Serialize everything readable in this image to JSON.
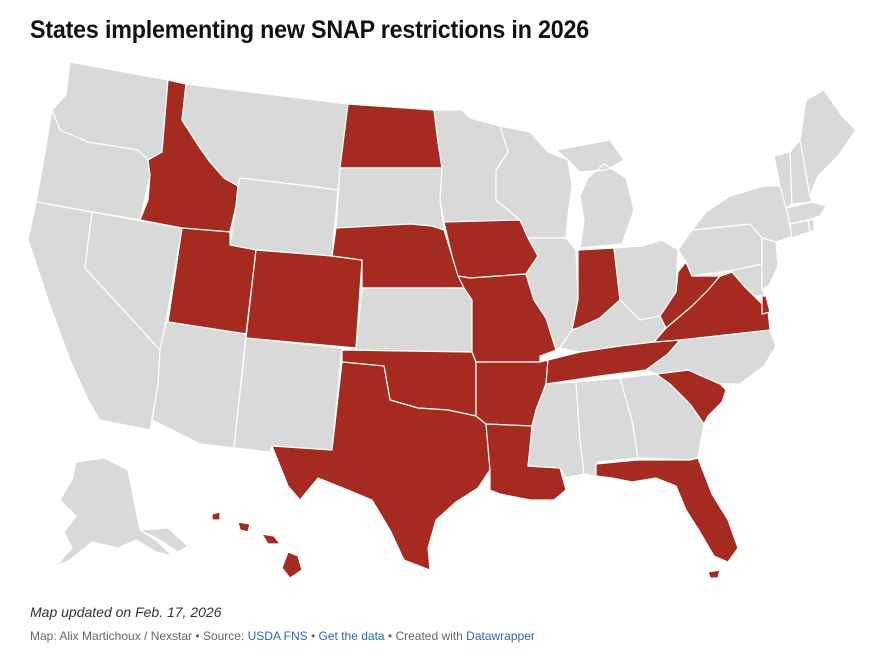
{
  "title": "States implementing new SNAP restrictions in 2026",
  "colors": {
    "restricted": "#a52a1f",
    "other": "#d9d9d9",
    "border": "#ffffff",
    "link": "#2e6ab0"
  },
  "map": {
    "restricted_states": [
      "Idaho",
      "Utah",
      "Colorado",
      "North Dakota",
      "Nebraska",
      "Iowa",
      "Missouri",
      "Oklahoma",
      "Texas",
      "Arkansas",
      "Louisiana",
      "Indiana",
      "Tennessee",
      "West Virginia",
      "Virginia",
      "Delaware",
      "South Carolina",
      "Florida",
      "Hawaii"
    ]
  },
  "note": "Map updated on Feb. 17, 2026",
  "footer": {
    "map_credit": "Map: Alix Martichoux / Nexstar",
    "sep1": " • ",
    "source_label": "Source: ",
    "source_link": "USDA FNS",
    "sep2": " • ",
    "data_link": "Get the data",
    "sep3": " • ",
    "created_label": "Created with ",
    "created_link": "Datawrapper"
  }
}
